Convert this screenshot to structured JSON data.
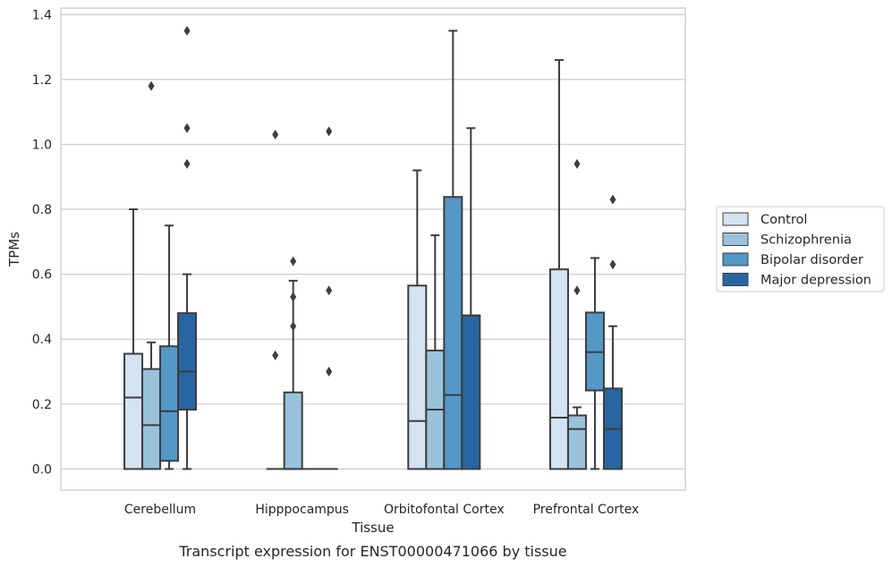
{
  "chart_data": {
    "type": "box",
    "title": "",
    "caption": "Transcript expression for ENST00000471066 by tissue",
    "xlabel": "Tissue",
    "ylabel": "TPMs",
    "ylim": [
      -0.065,
      1.42
    ],
    "yticks": [
      "0.0",
      "0.2",
      "0.4",
      "0.6",
      "0.8",
      "1.0",
      "1.2",
      "1.4"
    ],
    "grid": "horizontal",
    "legend_position": "right",
    "categories": [
      "Cerebellum",
      "Hipppocampus",
      "Orbitofontal Cortex",
      "Prefrontal Cortex"
    ],
    "series": [
      {
        "name": "Control",
        "color": "#d3e3f1",
        "boxes": [
          {
            "q1": 0.0,
            "median": 0.22,
            "q3": 0.355,
            "whisker_low": 0.0,
            "whisker_high": 0.8,
            "outliers": []
          },
          {
            "q1": 0.0,
            "median": 0.0,
            "q3": 0.0,
            "whisker_low": 0.0,
            "whisker_high": 0.0,
            "outliers": [
              0.35,
              1.03
            ]
          },
          {
            "q1": 0.0,
            "median": 0.148,
            "q3": 0.565,
            "whisker_low": 0.0,
            "whisker_high": 0.92,
            "outliers": []
          },
          {
            "q1": 0.0,
            "median": 0.158,
            "q3": 0.615,
            "whisker_low": 0.0,
            "whisker_high": 1.26,
            "outliers": []
          }
        ]
      },
      {
        "name": "Schizophrenia",
        "color": "#9ac2db",
        "boxes": [
          {
            "q1": 0.0,
            "median": 0.135,
            "q3": 0.308,
            "whisker_low": 0.0,
            "whisker_high": 0.39,
            "outliers": [
              1.18
            ]
          },
          {
            "q1": 0.0,
            "median": 0.0,
            "q3": 0.236,
            "whisker_low": 0.0,
            "whisker_high": 0.58,
            "outliers": [
              0.44,
              0.53,
              0.64
            ]
          },
          {
            "q1": 0.0,
            "median": 0.183,
            "q3": 0.365,
            "whisker_low": 0.0,
            "whisker_high": 0.72,
            "outliers": []
          },
          {
            "q1": 0.0,
            "median": 0.123,
            "q3": 0.165,
            "whisker_low": 0.0,
            "whisker_high": 0.19,
            "outliers": [
              0.55,
              0.94
            ]
          }
        ]
      },
      {
        "name": "Bipolar disorder",
        "color": "#5498c8",
        "boxes": [
          {
            "q1": 0.025,
            "median": 0.178,
            "q3": 0.378,
            "whisker_low": 0.0,
            "whisker_high": 0.75,
            "outliers": []
          },
          {
            "q1": 0.0,
            "median": 0.0,
            "q3": 0.0,
            "whisker_low": 0.0,
            "whisker_high": 0.0,
            "outliers": []
          },
          {
            "q1": 0.0,
            "median": 0.228,
            "q3": 0.838,
            "whisker_low": 0.0,
            "whisker_high": 1.35,
            "outliers": []
          },
          {
            "q1": 0.242,
            "median": 0.36,
            "q3": 0.482,
            "whisker_low": 0.0,
            "whisker_high": 0.65,
            "outliers": []
          }
        ]
      },
      {
        "name": "Major depression",
        "color": "#2866a3",
        "boxes": [
          {
            "q1": 0.183,
            "median": 0.3,
            "q3": 0.48,
            "whisker_low": 0.0,
            "whisker_high": 0.6,
            "outliers": [
              0.94,
              1.05,
              1.35
            ]
          },
          {
            "q1": 0.0,
            "median": 0.0,
            "q3": 0.0,
            "whisker_low": 0.0,
            "whisker_high": 0.0,
            "outliers": [
              0.3,
              0.55,
              1.04
            ]
          },
          {
            "q1": 0.0,
            "median": 0.473,
            "q3": 0.473,
            "whisker_low": 0.0,
            "whisker_high": 1.05,
            "outliers": []
          },
          {
            "q1": 0.0,
            "median": 0.123,
            "q3": 0.248,
            "whisker_low": 0.0,
            "whisker_high": 0.44,
            "outliers": [
              0.63,
              0.83
            ]
          }
        ]
      }
    ]
  }
}
